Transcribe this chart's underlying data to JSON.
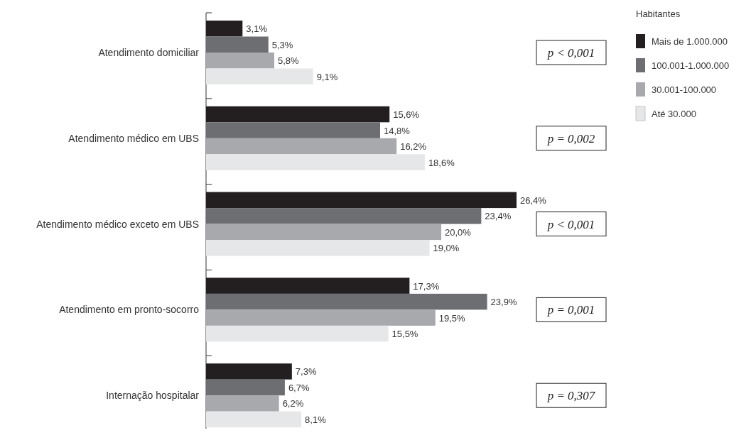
{
  "chart_data": {
    "type": "bar",
    "orientation": "horizontal",
    "categories": [
      "Atendimento domiciliar",
      "Atendimento médico em UBS",
      "Atendimento médico exceto em UBS",
      "Atendimento em pronto-socorro",
      "Internação hospitalar"
    ],
    "series": [
      {
        "name": "Mais de 1.000.000",
        "color": "#231f20",
        "values": [
          3.1,
          15.6,
          26.4,
          17.3,
          7.3
        ],
        "value_labels": [
          "3,1%",
          "15,6%",
          "26,4%",
          "17,3%",
          "7,3%"
        ]
      },
      {
        "name": "100.001-1.000.000",
        "color": "#6d6e71",
        "values": [
          5.3,
          14.8,
          23.4,
          23.9,
          6.7
        ],
        "value_labels": [
          "5,3%",
          "14,8%",
          "23,4%",
          "23,9%",
          "6,7%"
        ]
      },
      {
        "name": "30.001-100.000",
        "color": "#a7a9ac",
        "values": [
          5.8,
          16.2,
          20.0,
          19.5,
          6.2
        ],
        "value_labels": [
          "5,8%",
          "16,2%",
          "20,0%",
          "19,5%",
          "6,2%"
        ]
      },
      {
        "name": "Até 30.000",
        "color": "#e6e7e8",
        "values": [
          9.1,
          18.6,
          19.0,
          15.5,
          8.1
        ],
        "value_labels": [
          "9,1%",
          "18,6%",
          "19,0%",
          "15,5%",
          "8,1%"
        ]
      }
    ],
    "legend_title": "Habitantes",
    "legend": "top right",
    "annotations": [
      "p < 0,001",
      "p = 0,002",
      "p < 0,001",
      "p = 0,001",
      "p = 0,307"
    ]
  }
}
